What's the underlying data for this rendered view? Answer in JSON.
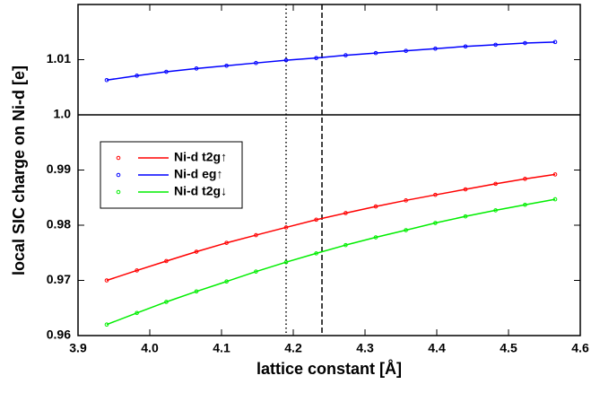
{
  "chart_data": {
    "type": "line",
    "xlabel": "lattice constant [Å]",
    "ylabel": "local SIC charge on Ni-d [e]",
    "x": [
      3.94,
      3.982,
      4.023,
      4.065,
      4.107,
      4.148,
      4.19,
      4.232,
      4.273,
      4.315,
      4.357,
      4.398,
      4.44,
      4.482,
      4.523,
      4.565
    ],
    "series": [
      {
        "name": "Ni-d t2g↑",
        "color": "#ff0000",
        "values": [
          0.97,
          0.9718,
          0.9735,
          0.9752,
          0.9768,
          0.9782,
          0.9796,
          0.981,
          0.9822,
          0.9834,
          0.9845,
          0.9855,
          0.9865,
          0.9875,
          0.9884,
          0.9892
        ]
      },
      {
        "name": "Ni-d eg↑",
        "color": "#0000ff",
        "values": [
          1.0063,
          1.0071,
          1.0078,
          1.0084,
          1.0089,
          1.0094,
          1.0099,
          1.0103,
          1.0108,
          1.0112,
          1.0116,
          1.012,
          1.0124,
          1.0127,
          1.013,
          1.0132
        ]
      },
      {
        "name": "Ni-d t2g↓",
        "color": "#00ee00",
        "values": [
          0.962,
          0.9641,
          0.9661,
          0.968,
          0.9698,
          0.9716,
          0.9733,
          0.9749,
          0.9764,
          0.9778,
          0.9791,
          0.9804,
          0.9816,
          0.9827,
          0.9837,
          0.9847
        ]
      }
    ],
    "xlim": [
      3.9,
      4.6
    ],
    "xticks": [
      3.9,
      {
        "value": 4,
        "label": "4.0"
      },
      4.1,
      4.2,
      4.3,
      4.4,
      4.5,
      4.6
    ],
    "ylim": [
      0.96,
      1.02
    ],
    "yticks": [
      0.96,
      0.97,
      0.98,
      0.99,
      {
        "value": 1,
        "label": "1.0"
      },
      1.01
    ],
    "vlines": [
      {
        "value": 4.19,
        "style": "dotted"
      },
      {
        "value": 4.24,
        "style": "dashed"
      }
    ],
    "hline": 1,
    "legend": "left"
  }
}
